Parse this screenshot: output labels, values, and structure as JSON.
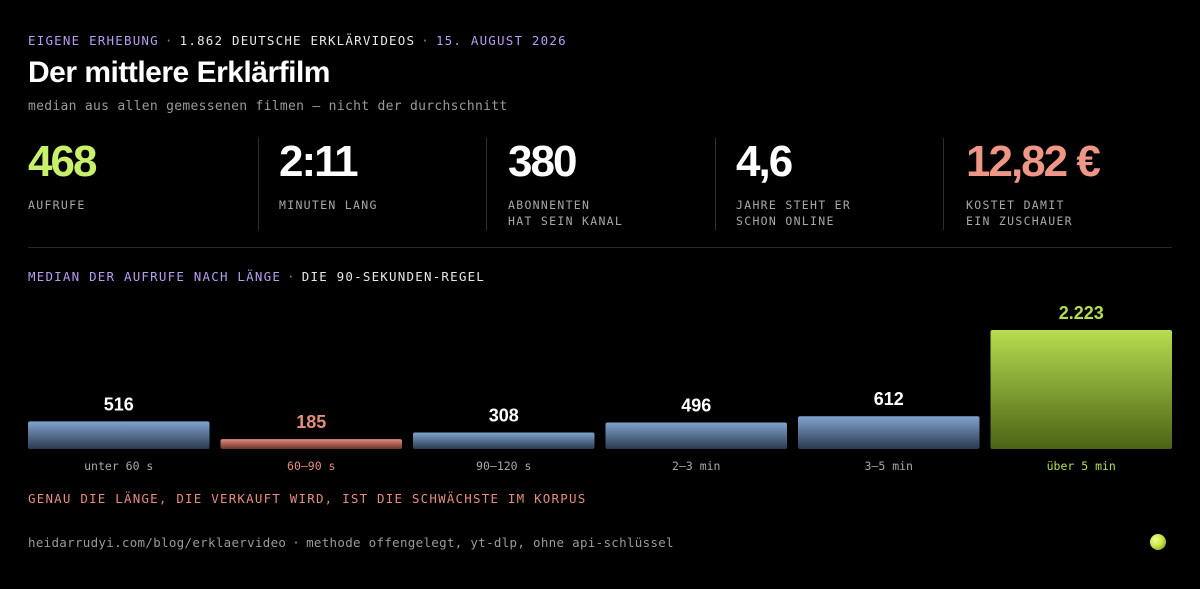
{
  "header": {
    "kicker_source": "EIGENE ERHEBUNG",
    "kicker_count": "1.862 DEUTSCHE ERKLÄRVIDEOS",
    "kicker_date": "15. AUGUST 2026",
    "separator": "·",
    "title": "Der mittlere Erklärfilm",
    "subtitle": "median aus allen gemessenen filmen — nicht der durchschnitt"
  },
  "stats": [
    {
      "value": "468",
      "label": "AUFRUFE",
      "color": "#c9f06b"
    },
    {
      "value": "2:11",
      "label": "MINUTEN LANG",
      "color": "#ffffff"
    },
    {
      "value": "380",
      "label": "ABONNENTEN\nHAT SEIN KANAL",
      "color": "#ffffff"
    },
    {
      "value": "4,6",
      "label": "JAHRE STEHT ER\nSCHON ONLINE",
      "color": "#ffffff"
    },
    {
      "value": "12,82 €",
      "label": "KOSTET DAMIT\nEIN ZUSCHAUER",
      "color": "#ee9786"
    }
  ],
  "section": {
    "heading": "MEDIAN DER AUFRUFE NACH LÄNGE",
    "subheading": "DIE 90-SEKUNDEN-REGEL"
  },
  "chart_data": {
    "type": "bar",
    "title": "MEDIAN DER AUFRUFE NACH LÄNGE",
    "categories": [
      "unter 60 s",
      "60–90 s",
      "90–120 s",
      "2–3 min",
      "3–5 min",
      "über 5 min"
    ],
    "values": [
      516,
      185,
      308,
      496,
      612,
      2223
    ],
    "value_labels": [
      "516",
      "185",
      "308",
      "496",
      "612",
      "2.223"
    ],
    "highlight": {
      "60–90 s": "low",
      "über 5 min": "high"
    },
    "colors": {
      "default": "#7fa3cf",
      "low": "#e58d7c",
      "high": "#b5dd50"
    },
    "ylim": [
      0,
      2223
    ],
    "grid": false
  },
  "note": "GENAU DIE LÄNGE, DIE VERKAUFT WIRD, IST DIE SCHWÄCHSTE IM KORPUS",
  "footer": {
    "url": "heidarrudyi.com/blog/erklaervideo",
    "separator": "·",
    "method": "methode offengelegt, yt-dlp, ohne api-schlüssel"
  }
}
